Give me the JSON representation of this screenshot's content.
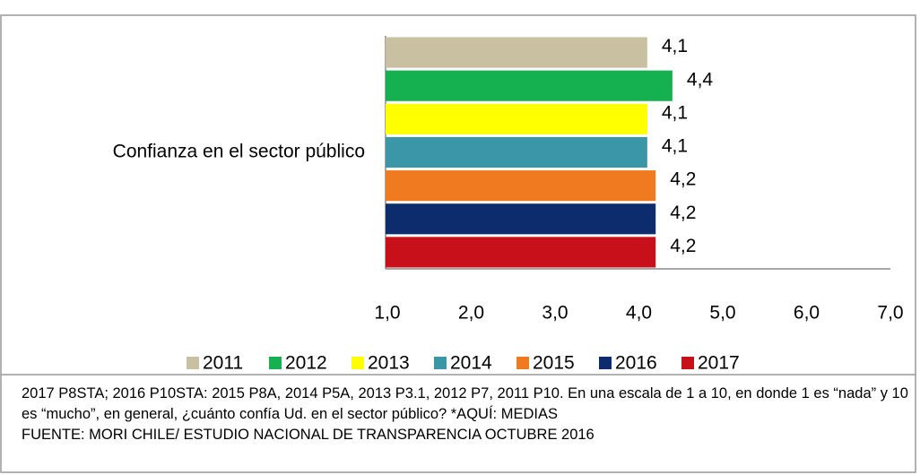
{
  "chart_data": {
    "type": "bar",
    "orientation": "horizontal",
    "categories": [
      "Confianza en el sector público"
    ],
    "series": [
      {
        "name": "2011",
        "color": "#c9c0a1",
        "values": [
          4.1
        ],
        "value_labels": [
          "4,1"
        ]
      },
      {
        "name": "2012",
        "color": "#15b050",
        "values": [
          4.4
        ],
        "value_labels": [
          "4,4"
        ]
      },
      {
        "name": "2013",
        "color": "#ffff00",
        "values": [
          4.1
        ],
        "value_labels": [
          "4,1"
        ]
      },
      {
        "name": "2014",
        "color": "#3b96a8",
        "values": [
          4.1
        ],
        "value_labels": [
          "4,1"
        ]
      },
      {
        "name": "2015",
        "color": "#f07a1f",
        "values": [
          4.2
        ],
        "value_labels": [
          "4,2"
        ]
      },
      {
        "name": "2016",
        "color": "#0c2c6e",
        "values": [
          4.2
        ],
        "value_labels": [
          "4,2"
        ]
      },
      {
        "name": "2017",
        "color": "#c8101b",
        "values": [
          4.2
        ],
        "value_labels": [
          "4,2"
        ]
      }
    ],
    "xlim": [
      1,
      7
    ],
    "xticks": [
      {
        "value": 1,
        "label": "1,0"
      },
      {
        "value": 2,
        "label": "2,0"
      },
      {
        "value": 3,
        "label": "3,0"
      },
      {
        "value": 4,
        "label": "4,0"
      },
      {
        "value": 5,
        "label": "5,0"
      },
      {
        "value": 6,
        "label": "6,0"
      },
      {
        "value": 7,
        "label": "7,0"
      }
    ],
    "legend": "bottom",
    "note": "2017 P8STA; 2016 P10STA: 2015 P8A, 2014 P5A, 2013 P3.1, 2012 P7, 2011 P10. En una escala de 1 a 10, en donde 1 es “nada” y 10 es “mucho”, en general, ¿cuánto confía Ud. en el sector público? *AQUÍ: MEDIAS",
    "source": "FUENTE: MORI CHILE/ ESTUDIO NACIONAL DE TRANSPARENCIA OCTUBRE 2016"
  }
}
